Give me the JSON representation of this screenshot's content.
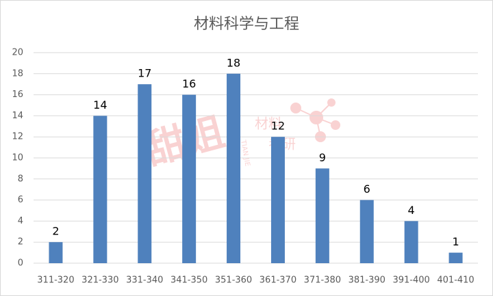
{
  "chart_data": {
    "type": "bar",
    "title": "材料科学与工程",
    "categories": [
      "311-320",
      "321-330",
      "331-340",
      "341-350",
      "351-360",
      "361-370",
      "371-380",
      "381-390",
      "391-400",
      "401-410"
    ],
    "values": [
      2,
      14,
      17,
      16,
      18,
      12,
      9,
      6,
      4,
      1
    ],
    "color": "#4f81bd",
    "ylim": [
      0,
      20
    ],
    "yticks": [
      0,
      2,
      4,
      6,
      8,
      10,
      12,
      14,
      16,
      18,
      20
    ],
    "grid": true,
    "data_labels": true
  },
  "watermark": {
    "logo": "甜姐",
    "pinyin": "TIAN JIE",
    "line1": "材料",
    "line2": "考研"
  }
}
